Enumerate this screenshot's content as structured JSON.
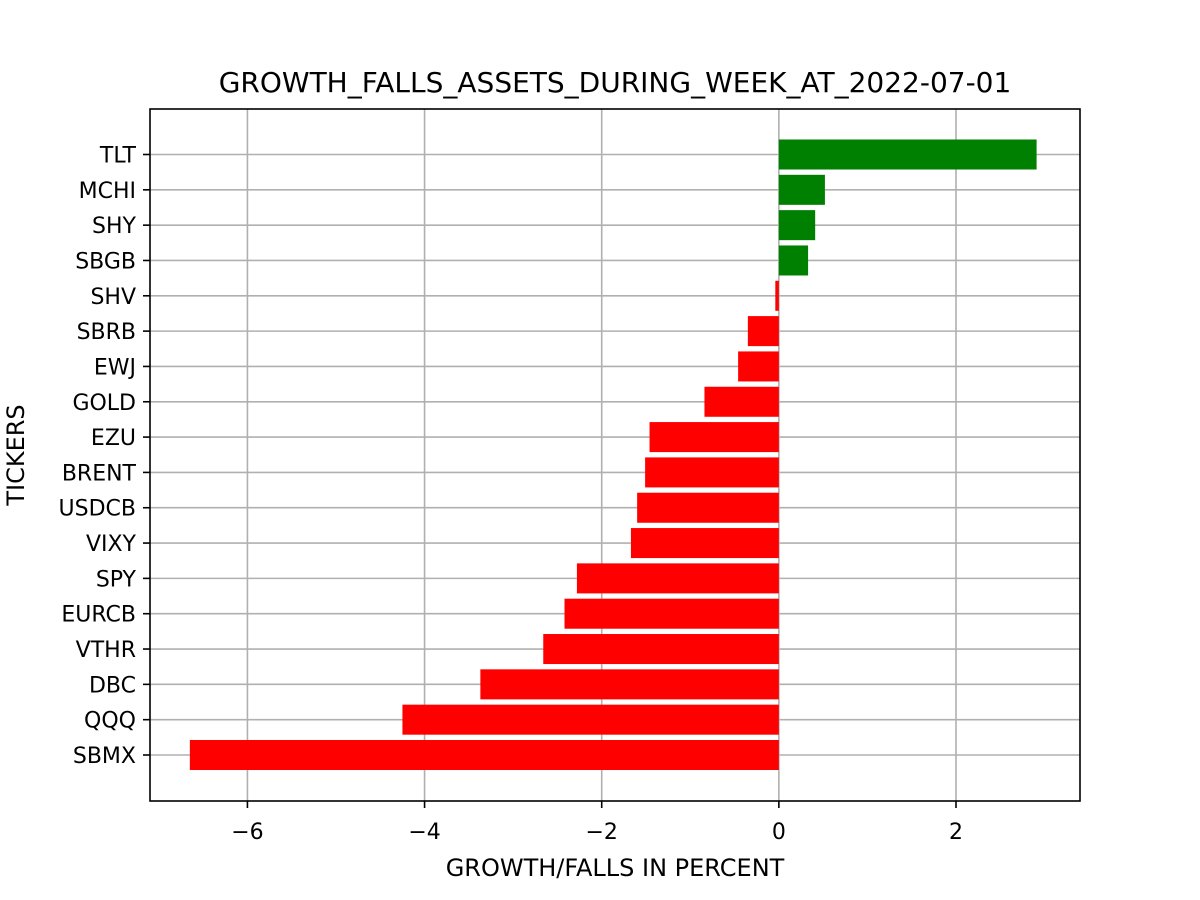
{
  "chart_data": {
    "type": "bar",
    "orientation": "horizontal",
    "title": "GROWTH_FALLS_ASSETS_DURING_WEEK_AT_2022-07-01",
    "xlabel": "GROWTH/FALLS IN PERCENT",
    "ylabel": "TICKERS",
    "xlim": [
      -7.1,
      3.4
    ],
    "x_ticks": [
      -6,
      -4,
      -2,
      0,
      2
    ],
    "x_tick_labels": [
      "−6",
      "−4",
      "−2",
      "0",
      "2"
    ],
    "grid": true,
    "positive_color": "#008000",
    "negative_color": "#ff0000",
    "categories": [
      "TLT",
      "MCHI",
      "SHY",
      "SBGB",
      "SHV",
      "SBRB",
      "EWJ",
      "GOLD",
      "EZU",
      "BRENT",
      "USDCB",
      "VIXY",
      "SPY",
      "EURCB",
      "VTHR",
      "DBC",
      "QQQ",
      "SBMX"
    ],
    "values": [
      2.91,
      0.52,
      0.41,
      0.33,
      -0.04,
      -0.35,
      -0.46,
      -0.84,
      -1.46,
      -1.51,
      -1.6,
      -1.67,
      -2.28,
      -2.42,
      -2.66,
      -3.37,
      -4.25,
      -6.65
    ]
  }
}
